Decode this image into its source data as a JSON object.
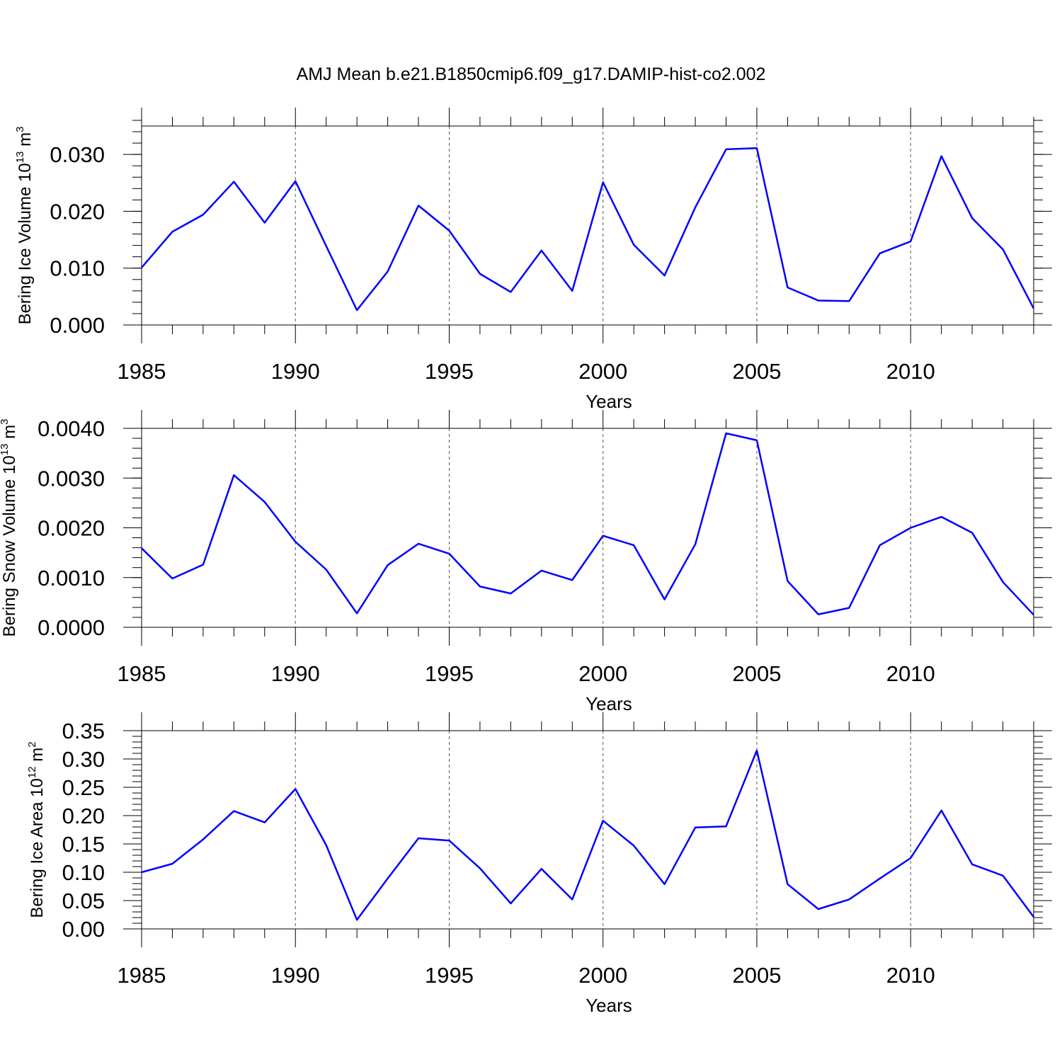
{
  "title": "AMJ Mean b.e21.B1850cmip6.f09_g17.DAMIP-hist-co2.002",
  "colors": {
    "line": "#0000ff",
    "grid": "#555555",
    "axes": "#000000"
  },
  "chart_data": [
    {
      "type": "line",
      "xlabel": "Years",
      "ylabel": {
        "text": "Bering Ice Volume 10",
        "sup": "13",
        "unit": "m",
        "unit_sup": "3"
      },
      "x": [
        1985,
        1986,
        1987,
        1988,
        1989,
        1990,
        1991,
        1992,
        1993,
        1994,
        1995,
        1996,
        1997,
        1998,
        1999,
        2000,
        2001,
        2002,
        2003,
        2004,
        2005,
        2006,
        2007,
        2008,
        2009,
        2010,
        2011,
        2012,
        2013,
        2014
      ],
      "values": [
        0.0101,
        0.0164,
        0.0194,
        0.0252,
        0.018,
        0.0253,
        0.0139,
        0.0026,
        0.0094,
        0.021,
        0.0166,
        0.009,
        0.0058,
        0.0131,
        0.006,
        0.0251,
        0.0141,
        0.0087,
        0.0207,
        0.0309,
        0.0311,
        0.0066,
        0.0043,
        0.0042,
        0.0126,
        0.0147,
        0.0297,
        0.0188,
        0.0133,
        0.0029
      ],
      "xlim": [
        1985,
        2014
      ],
      "ylim": [
        0,
        0.035
      ],
      "xticks": [
        "1985",
        "1990",
        "1995",
        "2000",
        "2005",
        "2010"
      ],
      "yticks": [
        "0.000",
        "0.010",
        "0.020",
        "0.030"
      ],
      "ytick_values": [
        0,
        0.01,
        0.02,
        0.03
      ],
      "ytick_minor_step": 0.002,
      "grid": "vertical dashed at major x ticks"
    },
    {
      "type": "line",
      "xlabel": "Years",
      "ylabel": {
        "text": "Bering Snow Volume 10",
        "sup": "13",
        "unit": "m",
        "unit_sup": "3"
      },
      "x": [
        1985,
        1986,
        1987,
        1988,
        1989,
        1990,
        1991,
        1992,
        1993,
        1994,
        1995,
        1996,
        1997,
        1998,
        1999,
        2000,
        2001,
        2002,
        2003,
        2004,
        2005,
        2006,
        2007,
        2008,
        2009,
        2010,
        2011,
        2012,
        2013,
        2014
      ],
      "values": [
        0.00159,
        0.00098,
        0.00126,
        0.00306,
        0.00252,
        0.00172,
        0.00116,
        0.00028,
        0.00125,
        0.00168,
        0.00148,
        0.00082,
        0.00068,
        0.00114,
        0.00095,
        0.00184,
        0.00165,
        0.00056,
        0.00167,
        0.0039,
        0.00376,
        0.00093,
        0.00026,
        0.00039,
        0.00165,
        0.002,
        0.00222,
        0.0019,
        0.00091,
        0.00025
      ],
      "xlim": [
        1985,
        2014
      ],
      "ylim": [
        0,
        0.004
      ],
      "xticks": [
        "1985",
        "1990",
        "1995",
        "2000",
        "2005",
        "2010"
      ],
      "yticks": [
        "0.0000",
        "0.0010",
        "0.0020",
        "0.0030",
        "0.0040"
      ],
      "ytick_values": [
        0,
        0.001,
        0.002,
        0.003,
        0.004
      ],
      "ytick_minor_step": 0.0002,
      "grid": "vertical dashed at major x ticks"
    },
    {
      "type": "line",
      "xlabel": "Years",
      "ylabel": {
        "text": "Bering Ice Area 10",
        "sup": "12",
        "unit": "m",
        "unit_sup": "2"
      },
      "x": [
        1985,
        1986,
        1987,
        1988,
        1989,
        1990,
        1991,
        1992,
        1993,
        1994,
        1995,
        1996,
        1997,
        1998,
        1999,
        2000,
        2001,
        2002,
        2003,
        2004,
        2005,
        2006,
        2007,
        2008,
        2009,
        2010,
        2011,
        2012,
        2013,
        2014
      ],
      "values": [
        0.1,
        0.115,
        0.158,
        0.208,
        0.188,
        0.247,
        0.148,
        0.016,
        0.089,
        0.16,
        0.156,
        0.107,
        0.045,
        0.106,
        0.052,
        0.191,
        0.147,
        0.079,
        0.179,
        0.181,
        0.315,
        0.079,
        0.035,
        0.052,
        0.089,
        0.125,
        0.209,
        0.114,
        0.094,
        0.021
      ],
      "xlim": [
        1985,
        2014
      ],
      "ylim": [
        0,
        0.35
      ],
      "xticks": [
        "1985",
        "1990",
        "1995",
        "2000",
        "2005",
        "2010"
      ],
      "yticks": [
        "0.00",
        "0.05",
        "0.10",
        "0.15",
        "0.20",
        "0.25",
        "0.30",
        "0.35"
      ],
      "ytick_values": [
        0,
        0.05,
        0.1,
        0.15,
        0.2,
        0.25,
        0.3,
        0.35
      ],
      "ytick_minor_step": 0.01,
      "grid": "vertical dashed at major x ticks"
    }
  ]
}
